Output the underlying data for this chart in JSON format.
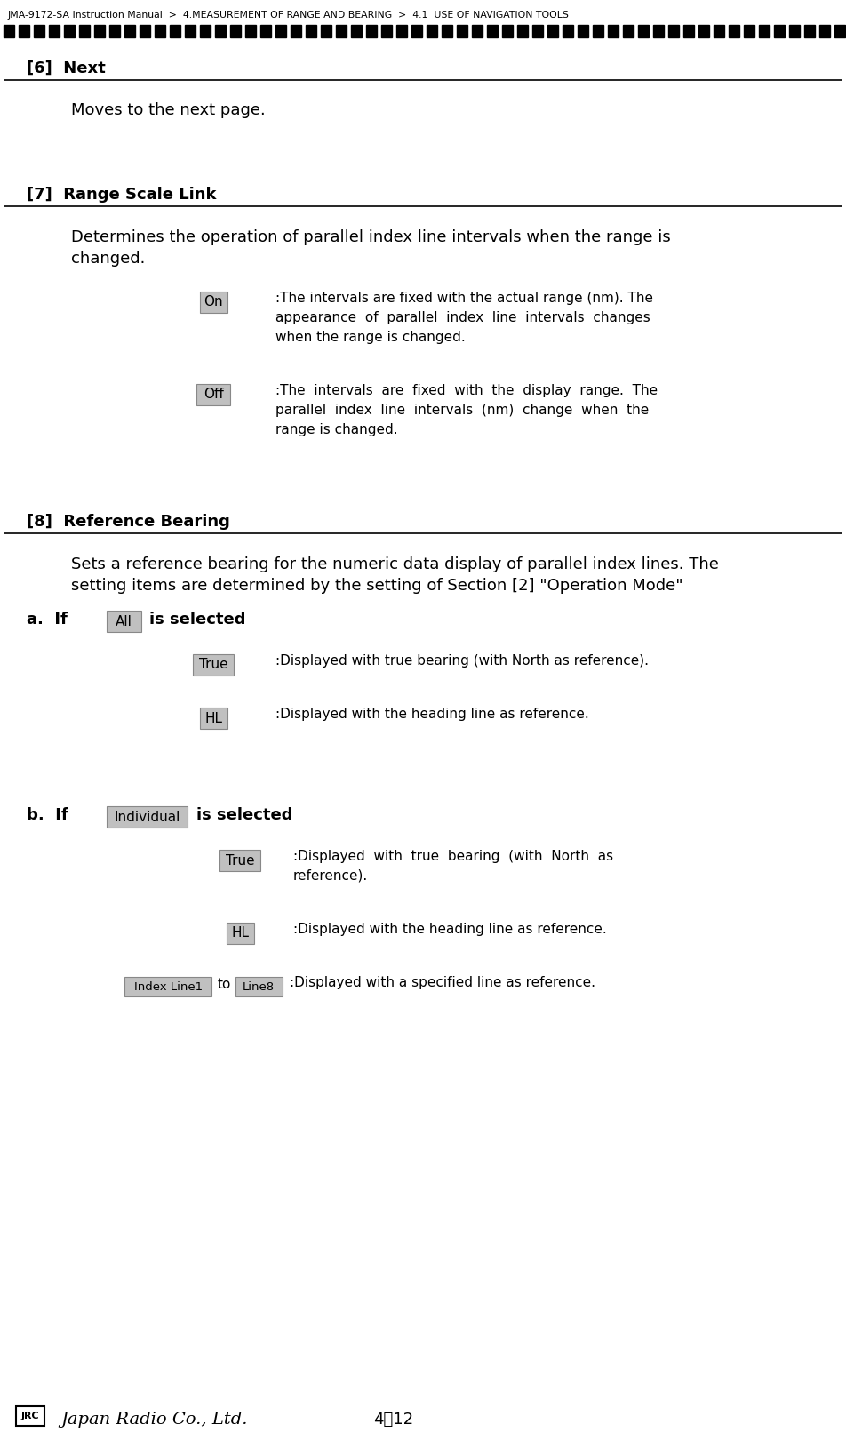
{
  "bg_color": "#ffffff",
  "breadcrumb": "JMA-9172-SA Instruction Manual  >  4.MEASUREMENT OF RANGE AND BEARING  >  4.1  USE OF NAVIGATION TOOLS",
  "page_number": "4－12",
  "section6_title": "[6]  Next",
  "section6_body": "Moves to the next page.",
  "section7_title": "[7]  Range Scale Link",
  "section7_body_line1": "Determines the operation of parallel index line intervals when the range is",
  "section7_body_line2": "changed.",
  "section7_items": [
    {
      "button": "On",
      "text_lines": [
        ":The intervals are fixed with the actual range (nm). The",
        "appearance  of  parallel  index  line  intervals  changes",
        "when the range is changed."
      ]
    },
    {
      "button": "Off",
      "text_lines": [
        ":The  intervals  are  fixed  with  the  display  range.  The",
        "parallel  index  line  intervals  (nm)  change  when  the",
        "range is changed."
      ]
    }
  ],
  "section8_title": "[8]  Reference Bearing",
  "section8_body_line1": "Sets a reference bearing for the numeric data display of parallel index lines. The",
  "section8_body_line2": "setting items are determined by the setting of Section [2] \"Operation Mode\"",
  "section8_a_label": "a.  If",
  "section8_a_button": "All",
  "section8_a_suffix": "is selected",
  "section8_a_items": [
    {
      "button": "True",
      "text_lines": [
        ":Displayed with true bearing (with North as reference)."
      ]
    },
    {
      "button": "HL",
      "text_lines": [
        ":Displayed with the heading line as reference."
      ]
    }
  ],
  "section8_b_label": "b.  If",
  "section8_b_button": "Individual",
  "section8_b_suffix": "is selected",
  "section8_b_items": [
    {
      "button": "True",
      "text_lines": [
        ":Displayed  with  true  bearing  (with  North  as",
        "reference)."
      ]
    },
    {
      "button": "HL",
      "text_lines": [
        ":Displayed with the heading line as reference."
      ]
    },
    {
      "button": "Index Line1",
      "button2": "Line8",
      "between": "to",
      "text_lines": [
        ":Displayed with a specified line as reference."
      ]
    }
  ],
  "button_bg": "#c0c0c0",
  "button_border": "#888888",
  "text_color": "#000000"
}
